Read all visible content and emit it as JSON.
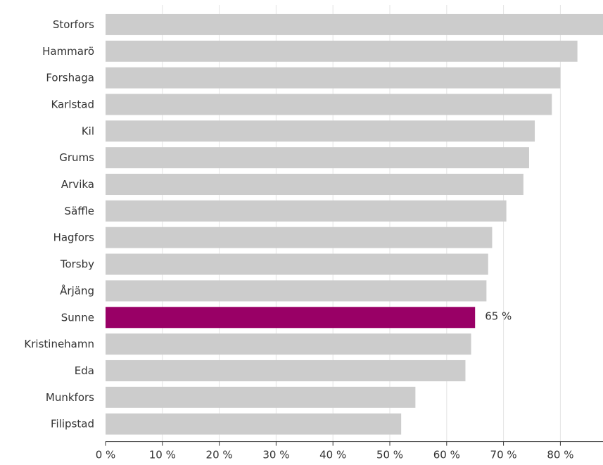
{
  "chart_data": {
    "type": "bar",
    "orientation": "horizontal",
    "categories": [
      "Storfors",
      "Hammarö",
      "Forshaga",
      "Karlstad",
      "Kil",
      "Grums",
      "Arvika",
      "Säffle",
      "Hagfors",
      "Torsby",
      "Årjäng",
      "Sunne",
      "Kristinehamn",
      "Eda",
      "Munkfors",
      "Filipstad"
    ],
    "values": [
      88,
      83,
      80,
      78.5,
      75.5,
      74.5,
      73.5,
      70.5,
      68,
      67.3,
      67,
      65,
      64.3,
      63.3,
      54.5,
      52
    ],
    "highlight": {
      "category": "Sunne",
      "label": "65 %",
      "color": "#990066"
    },
    "bar_color": "#cccccc",
    "xlim": [
      0,
      87.5
    ],
    "ticks": [
      0,
      10,
      20,
      30,
      40,
      50,
      60,
      70,
      80
    ],
    "tick_labels": [
      "0 %",
      "10 %",
      "20 %",
      "30 %",
      "40 %",
      "50 %",
      "60 %",
      "70 %",
      "80 %"
    ],
    "grid": true,
    "title": "",
    "xlabel": "",
    "ylabel": ""
  }
}
